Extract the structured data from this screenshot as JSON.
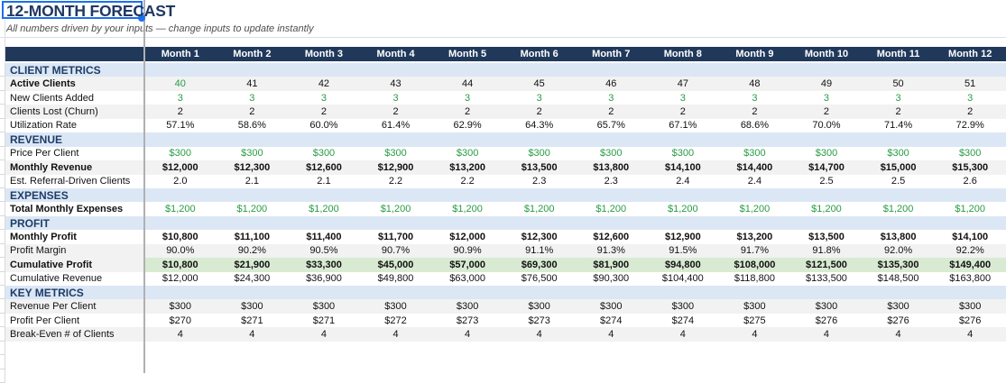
{
  "title": "12-MONTH FORECAST",
  "subtitle": "All numbers driven by your inputs — change inputs to update instantly",
  "colors": {
    "header_bg": "#20395b",
    "section_bg": "#dce7f5",
    "stripe_bg": "#f2f2f2",
    "highlight_bg": "#d9ead3",
    "green_text": "#279c43",
    "title_text": "#1f3864",
    "selection_blue": "#1a6ff0",
    "divider_gray": "#b0b0b0"
  },
  "table": {
    "months": [
      "Month 1",
      "Month 2",
      "Month 3",
      "Month 4",
      "Month 5",
      "Month 6",
      "Month 7",
      "Month 8",
      "Month 9",
      "Month 10",
      "Month 11",
      "Month 12"
    ],
    "rows": [
      {
        "type": "section",
        "label": "CLIENT METRICS"
      },
      {
        "type": "data",
        "label": "Active Clients",
        "bold_label": true,
        "shade": true,
        "green": "first",
        "values": [
          "40",
          "41",
          "42",
          "43",
          "44",
          "45",
          "46",
          "47",
          "48",
          "49",
          "50",
          "51"
        ]
      },
      {
        "type": "data",
        "label": "New Clients Added",
        "green": "all",
        "values": [
          "3",
          "3",
          "3",
          "3",
          "3",
          "3",
          "3",
          "3",
          "3",
          "3",
          "3",
          "3"
        ]
      },
      {
        "type": "data",
        "label": "Clients Lost (Churn)",
        "shade": true,
        "values": [
          "2",
          "2",
          "2",
          "2",
          "2",
          "2",
          "2",
          "2",
          "2",
          "2",
          "2",
          "2"
        ]
      },
      {
        "type": "data",
        "label": "Utilization Rate",
        "values": [
          "57.1%",
          "58.6%",
          "60.0%",
          "61.4%",
          "62.9%",
          "64.3%",
          "65.7%",
          "67.1%",
          "68.6%",
          "70.0%",
          "71.4%",
          "72.9%"
        ]
      },
      {
        "type": "section",
        "label": "REVENUE"
      },
      {
        "type": "data",
        "label": "Price Per Client",
        "green": "all",
        "values": [
          "$300",
          "$300",
          "$300",
          "$300",
          "$300",
          "$300",
          "$300",
          "$300",
          "$300",
          "$300",
          "$300",
          "$300"
        ]
      },
      {
        "type": "data",
        "label": "Monthly Revenue",
        "bold_label": true,
        "bold_values": true,
        "shade": true,
        "values": [
          "$12,000",
          "$12,300",
          "$12,600",
          "$12,900",
          "$13,200",
          "$13,500",
          "$13,800",
          "$14,100",
          "$14,400",
          "$14,700",
          "$15,000",
          "$15,300"
        ]
      },
      {
        "type": "data",
        "label": "Est. Referral-Driven Clients",
        "values": [
          "2.0",
          "2.1",
          "2.1",
          "2.2",
          "2.2",
          "2.3",
          "2.3",
          "2.4",
          "2.4",
          "2.5",
          "2.5",
          "2.6"
        ]
      },
      {
        "type": "section",
        "label": "EXPENSES"
      },
      {
        "type": "data",
        "label": "Total Monthly Expenses",
        "bold_label": true,
        "green": "all",
        "values": [
          "$1,200",
          "$1,200",
          "$1,200",
          "$1,200",
          "$1,200",
          "$1,200",
          "$1,200",
          "$1,200",
          "$1,200",
          "$1,200",
          "$1,200",
          "$1,200"
        ]
      },
      {
        "type": "section",
        "label": "PROFIT"
      },
      {
        "type": "data",
        "label": "Monthly Profit",
        "bold_label": true,
        "bold_values": true,
        "values": [
          "$10,800",
          "$11,100",
          "$11,400",
          "$11,700",
          "$12,000",
          "$12,300",
          "$12,600",
          "$12,900",
          "$13,200",
          "$13,500",
          "$13,800",
          "$14,100"
        ]
      },
      {
        "type": "data",
        "label": "Profit Margin",
        "shade": true,
        "values": [
          "90.0%",
          "90.2%",
          "90.5%",
          "90.7%",
          "90.9%",
          "91.1%",
          "91.3%",
          "91.5%",
          "91.7%",
          "91.8%",
          "92.0%",
          "92.2%"
        ]
      },
      {
        "type": "data",
        "label": "Cumulative Profit",
        "bold_label": true,
        "bold_values": true,
        "shade": true,
        "highlight": true,
        "values": [
          "$10,800",
          "$21,900",
          "$33,300",
          "$45,000",
          "$57,000",
          "$69,300",
          "$81,900",
          "$94,800",
          "$108,000",
          "$121,500",
          "$135,300",
          "$149,400"
        ]
      },
      {
        "type": "data",
        "label": "Cumulative Revenue",
        "values": [
          "$12,000",
          "$24,300",
          "$36,900",
          "$49,800",
          "$63,000",
          "$76,500",
          "$90,300",
          "$104,400",
          "$118,800",
          "$133,500",
          "$148,500",
          "$163,800"
        ]
      },
      {
        "type": "section",
        "label": "KEY METRICS"
      },
      {
        "type": "data",
        "label": "Revenue Per Client",
        "shade": true,
        "values": [
          "$300",
          "$300",
          "$300",
          "$300",
          "$300",
          "$300",
          "$300",
          "$300",
          "$300",
          "$300",
          "$300",
          "$300"
        ]
      },
      {
        "type": "data",
        "label": "Profit Per Client",
        "values": [
          "$270",
          "$271",
          "$271",
          "$272",
          "$273",
          "$273",
          "$274",
          "$274",
          "$275",
          "$276",
          "$276",
          "$276"
        ]
      },
      {
        "type": "data",
        "label": "Break-Even # of Clients",
        "shade": true,
        "values": [
          "4",
          "4",
          "4",
          "4",
          "4",
          "4",
          "4",
          "4",
          "4",
          "4",
          "4",
          "4"
        ]
      }
    ]
  }
}
